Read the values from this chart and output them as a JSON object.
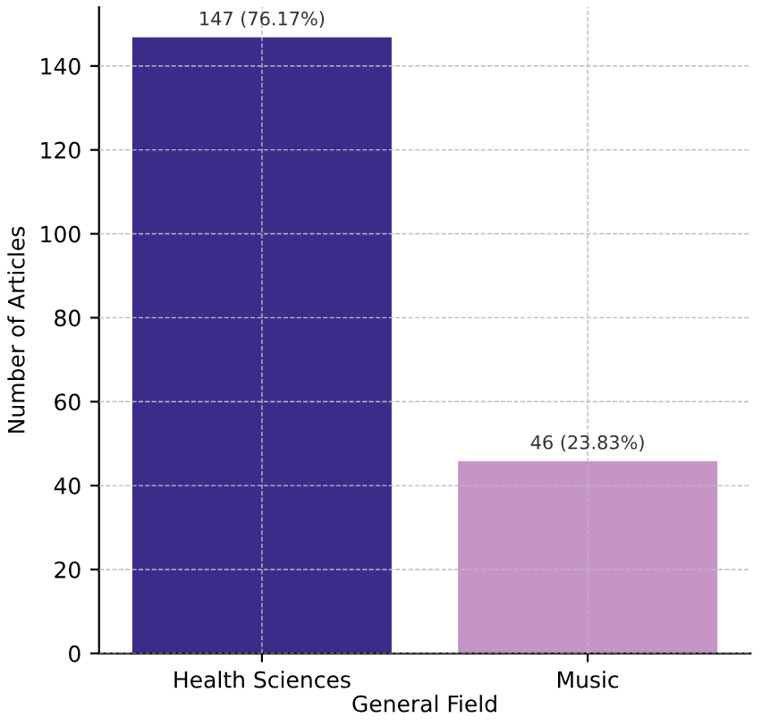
{
  "chart_data": {
    "type": "bar",
    "xlabel": "General Field",
    "ylabel": "Number of Articles",
    "categories": [
      "Health Sciences",
      "Music"
    ],
    "values": [
      147,
      46
    ],
    "colors": [
      "#3d2b8a",
      "#c794c8"
    ],
    "value_labels": [
      "147 (76.17%)",
      "46 (23.83%)"
    ],
    "ylim": [
      0,
      154
    ],
    "yticks": [
      0,
      20,
      40,
      60,
      80,
      100,
      120,
      140
    ],
    "grid": true
  }
}
